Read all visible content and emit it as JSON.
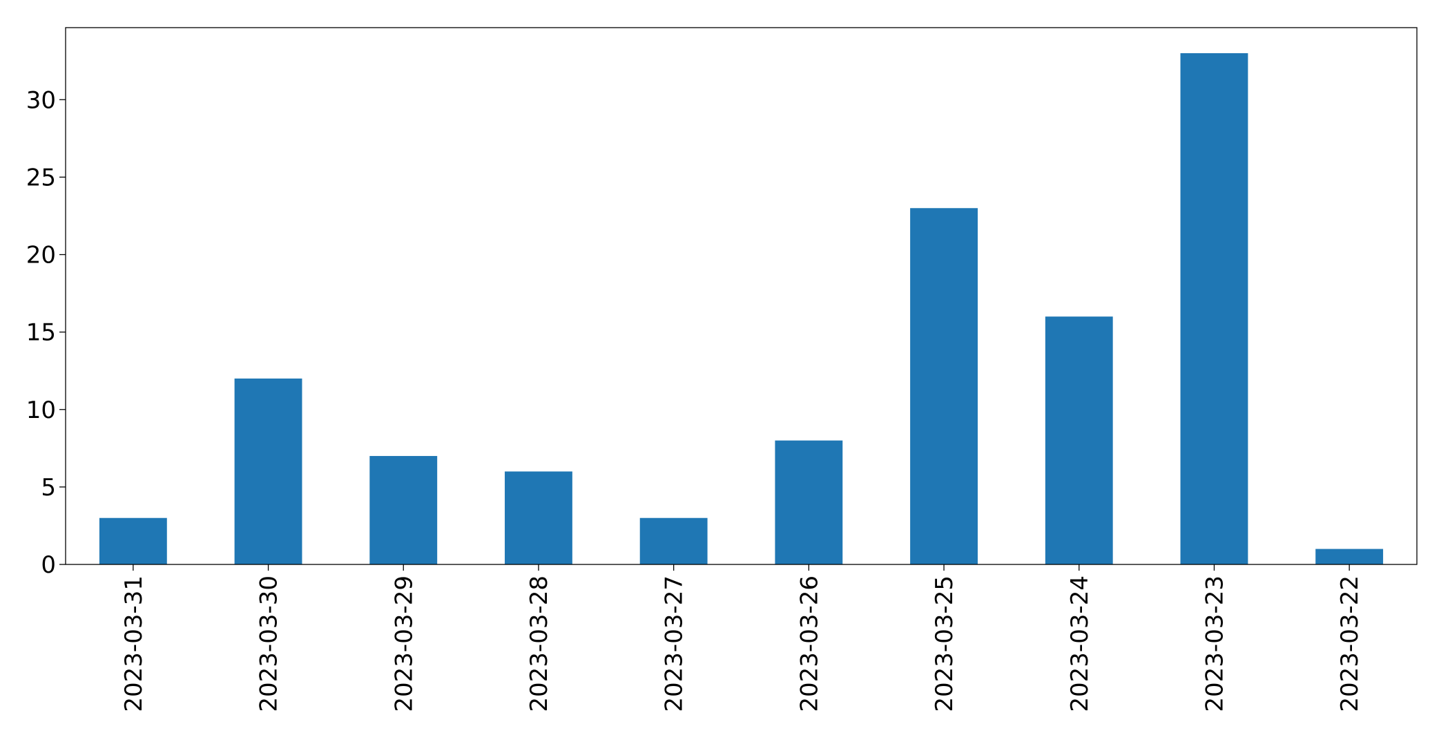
{
  "chart_data": {
    "type": "bar",
    "categories": [
      "2023-03-31",
      "2023-03-30",
      "2023-03-29",
      "2023-03-28",
      "2023-03-27",
      "2023-03-26",
      "2023-03-25",
      "2023-03-24",
      "2023-03-23",
      "2023-03-22"
    ],
    "values": [
      3,
      12,
      7,
      6,
      3,
      8,
      23,
      16,
      33,
      1
    ],
    "color": "#1f77b4",
    "ylim": [
      0,
      34.65
    ],
    "yticks": [
      0,
      5,
      10,
      15,
      20,
      25,
      30
    ],
    "grid": false
  }
}
